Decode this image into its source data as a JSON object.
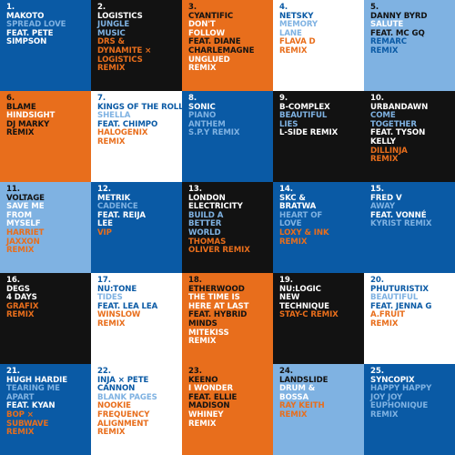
{
  "tiles": [
    {
      "number": "1.",
      "bg": "blue",
      "lines": [
        {
          "t": "MAKOTO",
          "c": "white"
        },
        {
          "t": "SPREAD LOVE",
          "c": "light"
        },
        {
          "t": "FEAT. PETE",
          "c": "white"
        },
        {
          "t": "SIMPSON",
          "c": "white"
        }
      ]
    },
    {
      "number": "2.",
      "bg": "black",
      "lines": [
        {
          "t": "LOGISTICS",
          "c": "white"
        },
        {
          "t": "JUNGLE",
          "c": "light"
        },
        {
          "t": "MUSIC",
          "c": "light"
        },
        {
          "t": "DRS &",
          "c": "orange"
        },
        {
          "t": "DYNAMITE ×",
          "c": "orange"
        },
        {
          "t": "LOGISTICS",
          "c": "orange"
        },
        {
          "t": "REMIX",
          "c": "orange"
        }
      ]
    },
    {
      "number": "3.",
      "bg": "orange",
      "lines": [
        {
          "t": "CYANTIFIC",
          "c": "black"
        },
        {
          "t": "DON'T",
          "c": "white"
        },
        {
          "t": "FOLLOW",
          "c": "white"
        },
        {
          "t": "FEAT. DIANE",
          "c": "black"
        },
        {
          "t": "CHARLEMAGNE",
          "c": "black"
        },
        {
          "t": "UNGLUED",
          "c": "white"
        },
        {
          "t": "REMIX",
          "c": "white"
        }
      ]
    },
    {
      "number": "4.",
      "bg": "white",
      "lines": [
        {
          "t": "NETSKY",
          "c": "blue"
        },
        {
          "t": "MEMORY",
          "c": "light"
        },
        {
          "t": "LANE",
          "c": "light"
        },
        {
          "t": "FLAVA D",
          "c": "orange"
        },
        {
          "t": "REMIX",
          "c": "orange"
        }
      ]
    },
    {
      "number": "5.",
      "bg": "light",
      "lines": [
        {
          "t": "DANNY BYRD",
          "c": "black"
        },
        {
          "t": "SALUTE",
          "c": "white"
        },
        {
          "t": "FEAT. MC GQ",
          "c": "black"
        },
        {
          "t": "REMARC",
          "c": "blue"
        },
        {
          "t": "REMIX",
          "c": "blue"
        }
      ]
    },
    {
      "number": "6.",
      "bg": "orange",
      "lines": [
        {
          "t": "BLAME",
          "c": "black"
        },
        {
          "t": "HINDSIGHT",
          "c": "white"
        },
        {
          "t": "DJ MARKY",
          "c": "black"
        },
        {
          "t": "REMIX",
          "c": "black"
        }
      ]
    },
    {
      "number": "7.",
      "bg": "white",
      "lines": [
        {
          "t": "KINGS OF THE ROLLERS",
          "c": "blue"
        },
        {
          "t": "SHELLA",
          "c": "light"
        },
        {
          "t": "FEAT. CHIMPO",
          "c": "blue"
        },
        {
          "t": "HALOGENIX",
          "c": "orange"
        },
        {
          "t": "REMIX",
          "c": "orange"
        }
      ]
    },
    {
      "number": "8.",
      "bg": "blue",
      "lines": [
        {
          "t": "SONIC",
          "c": "white"
        },
        {
          "t": "PIANO",
          "c": "light"
        },
        {
          "t": "ANTHEM",
          "c": "light"
        },
        {
          "t": "S.P.Y REMIX",
          "c": "light"
        }
      ]
    },
    {
      "number": "9.",
      "bg": "black",
      "lines": [
        {
          "t": "B-COMPLEX",
          "c": "white"
        },
        {
          "t": "BEAUTIFUL",
          "c": "light"
        },
        {
          "t": "LIES",
          "c": "light"
        },
        {
          "t": "L-SIDE REMIX",
          "c": "white"
        }
      ]
    },
    {
      "number": "10.",
      "bg": "black",
      "lines": [
        {
          "t": "URBANDAWN",
          "c": "white"
        },
        {
          "t": "COME",
          "c": "light"
        },
        {
          "t": "TOGETHER",
          "c": "light"
        },
        {
          "t": "FEAT. TYSON",
          "c": "white"
        },
        {
          "t": "KELLY",
          "c": "white"
        },
        {
          "t": "DILLINJA",
          "c": "orange"
        },
        {
          "t": "REMIX",
          "c": "orange"
        }
      ]
    },
    {
      "number": "11.",
      "bg": "light",
      "lines": [
        {
          "t": "VOLTAGE",
          "c": "black"
        },
        {
          "t": "SAVE ME",
          "c": "white"
        },
        {
          "t": "FROM",
          "c": "white"
        },
        {
          "t": "MYSELF",
          "c": "white"
        },
        {
          "t": "HARRIET",
          "c": "orange"
        },
        {
          "t": "JAXXON",
          "c": "orange"
        },
        {
          "t": "REMIX",
          "c": "orange"
        }
      ]
    },
    {
      "number": "12.",
      "bg": "blue",
      "lines": [
        {
          "t": "METRIK",
          "c": "white"
        },
        {
          "t": "CADENCE",
          "c": "light"
        },
        {
          "t": "FEAT. REIJA",
          "c": "white"
        },
        {
          "t": "LEE",
          "c": "white"
        },
        {
          "t": "VIP",
          "c": "orange"
        }
      ]
    },
    {
      "number": "13.",
      "bg": "black",
      "lines": [
        {
          "t": "LONDON",
          "c": "white"
        },
        {
          "t": "ELECTRICITY",
          "c": "white"
        },
        {
          "t": "BUILD A",
          "c": "light"
        },
        {
          "t": "BETTER",
          "c": "light"
        },
        {
          "t": "WORLD",
          "c": "light"
        },
        {
          "t": "THOMAS",
          "c": "orange"
        },
        {
          "t": "OLIVER REMIX",
          "c": "orange"
        }
      ]
    },
    {
      "number": "14.",
      "bg": "blue",
      "lines": [
        {
          "t": "SKC &",
          "c": "white"
        },
        {
          "t": "BRATWA",
          "c": "white"
        },
        {
          "t": "HEART OF",
          "c": "light"
        },
        {
          "t": "LOVE",
          "c": "light"
        },
        {
          "t": "LOXY & INK",
          "c": "orange"
        },
        {
          "t": "REMIX",
          "c": "orange"
        }
      ]
    },
    {
      "number": "15.",
      "bg": "blue",
      "lines": [
        {
          "t": "FRED V",
          "c": "white"
        },
        {
          "t": "AWAY",
          "c": "light"
        },
        {
          "t": "FEAT. VONNÉ",
          "c": "white"
        },
        {
          "t": "KYRIST REMIX",
          "c": "light"
        }
      ]
    },
    {
      "number": "16.",
      "bg": "black",
      "lines": [
        {
          "t": "DEGS",
          "c": "white"
        },
        {
          "t": "4 DAYS",
          "c": "white"
        },
        {
          "t": "GRAFIX",
          "c": "orange"
        },
        {
          "t": "REMIX",
          "c": "orange"
        }
      ]
    },
    {
      "number": "17.",
      "bg": "white",
      "lines": [
        {
          "t": "NU:TONE",
          "c": "blue"
        },
        {
          "t": "TIDES",
          "c": "light"
        },
        {
          "t": "FEAT. LEA LEA",
          "c": "blue"
        },
        {
          "t": "WINSLOW",
          "c": "orange"
        },
        {
          "t": "REMIX",
          "c": "orange"
        }
      ]
    },
    {
      "number": "18.",
      "bg": "orange",
      "lines": [
        {
          "t": "ETHERWOOD",
          "c": "black"
        },
        {
          "t": "THE TIME IS",
          "c": "white"
        },
        {
          "t": "HERE AT LAST",
          "c": "white"
        },
        {
          "t": "FEAT. HYBRID",
          "c": "black"
        },
        {
          "t": "MINDS",
          "c": "black"
        },
        {
          "t": "MITEKISS",
          "c": "white"
        },
        {
          "t": "REMIX",
          "c": "white"
        }
      ]
    },
    {
      "number": "19.",
      "bg": "black",
      "lines": [
        {
          "t": "NU:LOGIC",
          "c": "white"
        },
        {
          "t": "NEW",
          "c": "white"
        },
        {
          "t": "TECHNIQUE",
          "c": "white"
        },
        {
          "t": "STAY-C REMIX",
          "c": "orange"
        }
      ]
    },
    {
      "number": "20.",
      "bg": "white",
      "lines": [
        {
          "t": "PHUTURISTIX",
          "c": "blue"
        },
        {
          "t": "BEAUTIFUL",
          "c": "light"
        },
        {
          "t": "FEAT. JENNA G",
          "c": "blue"
        },
        {
          "t": "A.FRUIT",
          "c": "orange"
        },
        {
          "t": "REMIX",
          "c": "orange"
        }
      ]
    },
    {
      "number": "21.",
      "bg": "blue",
      "lines": [
        {
          "t": "HUGH HARDIE",
          "c": "white"
        },
        {
          "t": "TEARING ME",
          "c": "light"
        },
        {
          "t": "APART",
          "c": "light"
        },
        {
          "t": "FEAT. KYAN",
          "c": "white"
        },
        {
          "t": "BOP ×",
          "c": "orange"
        },
        {
          "t": "SUBWAVE",
          "c": "orange"
        },
        {
          "t": "REMIX",
          "c": "orange"
        }
      ]
    },
    {
      "number": "22.",
      "bg": "white",
      "lines": [
        {
          "t": "INJA × PETE",
          "c": "blue"
        },
        {
          "t": "CANNON",
          "c": "blue"
        },
        {
          "t": "BLANK PAGES",
          "c": "light"
        },
        {
          "t": "NOOKIE",
          "c": "orange"
        },
        {
          "t": "FREQUENCY",
          "c": "orange"
        },
        {
          "t": "ALIGNMENT",
          "c": "orange"
        },
        {
          "t": "REMIX",
          "c": "orange"
        }
      ]
    },
    {
      "number": "23.",
      "bg": "orange",
      "lines": [
        {
          "t": "KEENO",
          "c": "black"
        },
        {
          "t": "I WONDER",
          "c": "white"
        },
        {
          "t": "FEAT. ELLIE",
          "c": "black"
        },
        {
          "t": "MADISON",
          "c": "black"
        },
        {
          "t": "WHINEY",
          "c": "white"
        },
        {
          "t": "REMIX",
          "c": "white"
        }
      ]
    },
    {
      "number": "24.",
      "bg": "light",
      "lines": [
        {
          "t": "LANDSLIDE",
          "c": "black"
        },
        {
          "t": "DRUM &",
          "c": "white"
        },
        {
          "t": "BOSSA",
          "c": "white"
        },
        {
          "t": "RAY KEITH",
          "c": "orange"
        },
        {
          "t": "REMIX",
          "c": "orange"
        }
      ]
    },
    {
      "number": "25.",
      "bg": "blue",
      "lines": [
        {
          "t": "SYNCOPIX",
          "c": "white"
        },
        {
          "t": "HAPPY HAPPY",
          "c": "light"
        },
        {
          "t": "JOY JOY",
          "c": "light"
        },
        {
          "t": "EUPHONIQUE",
          "c": "light"
        },
        {
          "t": "REMIX",
          "c": "light"
        }
      ]
    }
  ]
}
